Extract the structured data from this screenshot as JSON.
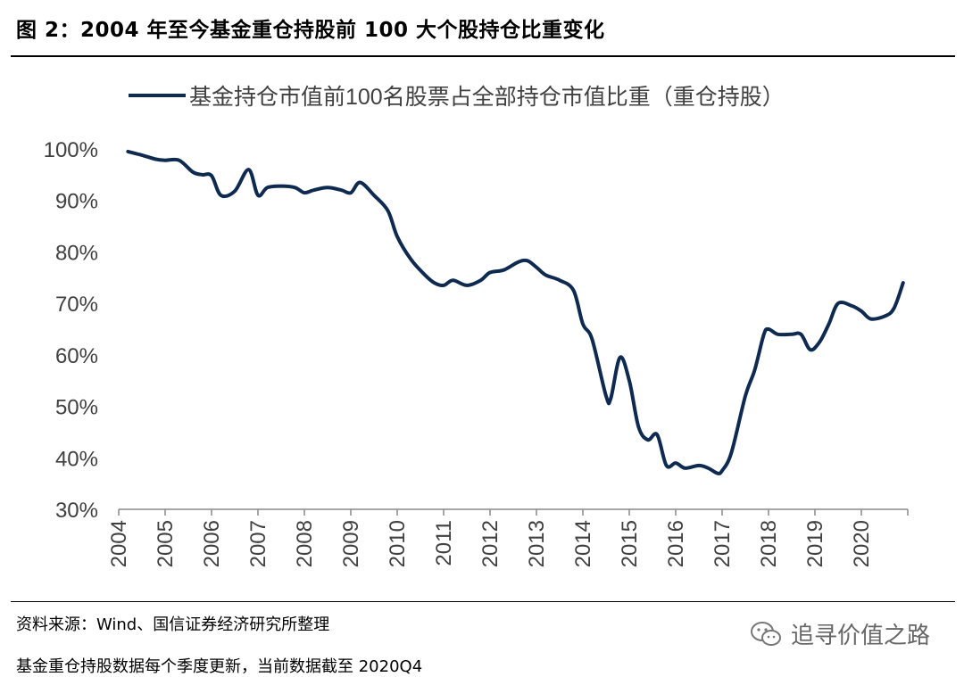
{
  "title": "图 2：2004 年至今基金重仓持股前 100 大个股持仓比重变化",
  "source": "资料来源：Wind、国信证券经济研究所整理",
  "note": "基金重仓持股数据每个季度更新，当前数据截至 2020Q4",
  "watermark": "追寻价值之路",
  "chart_data": {
    "type": "line",
    "legend": "基金持仓市值前100名股票占全部持仓市值比重（重仓持股）",
    "x_ticks": [
      "2004",
      "2005",
      "2006",
      "2007",
      "2008",
      "2009",
      "2010",
      "2011",
      "2012",
      "2013",
      "2014",
      "2015",
      "2016",
      "2017",
      "2018",
      "2019",
      "2020"
    ],
    "y_ticks": [
      "100%",
      "90%",
      "80%",
      "70%",
      "60%",
      "50%",
      "40%",
      "30%"
    ],
    "ylim": [
      30,
      100
    ],
    "xlim": [
      2004.0,
      2021.0
    ],
    "legend_position": "top",
    "grid": false,
    "color": "#0f2a50",
    "series": [
      {
        "x": [
          2004.2,
          2004.5,
          2004.8,
          2005.0,
          2005.3,
          2005.6,
          2005.8,
          2006.0,
          2006.2,
          2006.5,
          2006.8,
          2007.0,
          2007.2,
          2007.5,
          2007.8,
          2008.0,
          2008.2,
          2008.5,
          2008.8,
          2009.0,
          2009.2,
          2009.5,
          2009.8,
          2010.0,
          2010.3,
          2010.6,
          2010.8,
          2011.0,
          2011.2,
          2011.5,
          2011.8,
          2012.0,
          2012.3,
          2012.6,
          2012.8,
          2013.0,
          2013.2,
          2013.5,
          2013.8,
          2014.0,
          2014.2,
          2014.5,
          2014.6,
          2014.8,
          2015.0,
          2015.2,
          2015.4,
          2015.6,
          2015.8,
          2016.0,
          2016.2,
          2016.5,
          2016.7,
          2016.9,
          2017.0,
          2017.2,
          2017.5,
          2017.7,
          2017.9,
          2018.0,
          2018.2,
          2018.5,
          2018.7,
          2018.9,
          2019.1,
          2019.3,
          2019.5,
          2019.8,
          2020.0,
          2020.2,
          2020.5,
          2020.7,
          2020.9
        ],
        "y": [
          99.5,
          98.8,
          98.0,
          97.8,
          97.8,
          95.5,
          95.0,
          94.8,
          91.0,
          91.8,
          96.0,
          91.0,
          92.5,
          92.8,
          92.5,
          91.5,
          92.0,
          92.5,
          92.0,
          91.5,
          93.5,
          91.0,
          88.0,
          83.0,
          78.5,
          75.5,
          74.0,
          73.5,
          74.5,
          73.5,
          74.5,
          76.0,
          76.5,
          78.0,
          78.3,
          77.0,
          75.5,
          74.5,
          72.5,
          66.0,
          63.0,
          52.0,
          51.5,
          59.5,
          55.0,
          46.0,
          43.5,
          44.5,
          38.5,
          39.0,
          38.0,
          38.5,
          38.0,
          37.0,
          37.5,
          41.0,
          52.0,
          57.0,
          64.0,
          65.0,
          64.0,
          64.0,
          64.0,
          61.0,
          62.5,
          66.0,
          70.0,
          69.5,
          68.5,
          67.0,
          67.5,
          69.0,
          74.0
        ]
      }
    ]
  }
}
